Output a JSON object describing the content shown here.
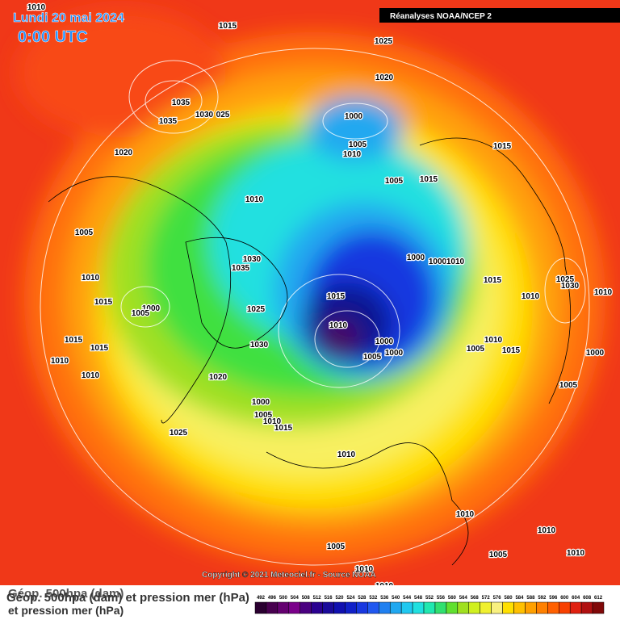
{
  "header": {
    "date": "Lundi 20 mai 2024",
    "time": "0:00 UTC",
    "source": "Réanalyses NOAA/NCEP 2"
  },
  "pressure_labels": [
    "1010",
    "1015",
    "1025",
    "1020",
    "1035",
    "1035",
    "1030",
    "025",
    "1000",
    "1005",
    "1010",
    "1020",
    "1015",
    "1005",
    "1015",
    "1010",
    "1005",
    "1030",
    "1035",
    "1000",
    "1000",
    "1010",
    "1010",
    "1015",
    "1025",
    "1030",
    "1010",
    "1015",
    "1010",
    "1015",
    "1000",
    "1005",
    "1025",
    "1010",
    "1000",
    "1000",
    "1005",
    "1030",
    "1015",
    "1015",
    "1010",
    "1005",
    "1015",
    "1000",
    "1010",
    "1010",
    "1020",
    "1005",
    "1000",
    "1005",
    "1010",
    "1015",
    "1025",
    "1010",
    "1010",
    "1010",
    "1005",
    "1005",
    "1010",
    "1010",
    "1010"
  ],
  "copyright": "Copyright © 2021 Meteociel.fr - Source NOAA",
  "legend": {
    "line1": "Géop. 500hpa (dam)",
    "line2": "Géop. 500hpa (dam) et pression mer (hPa)",
    "line3": "et pression mer (hPa)",
    "scale_values": [
      492,
      496,
      500,
      504,
      508,
      512,
      516,
      520,
      524,
      528,
      532,
      536,
      540,
      544,
      548,
      552,
      556,
      560,
      564,
      568,
      572,
      576,
      580,
      584,
      588,
      592,
      596,
      600,
      604,
      608,
      612
    ],
    "scale_colors": [
      "#2a0030",
      "#48004f",
      "#640070",
      "#7a008a",
      "#4a0080",
      "#2a0090",
      "#1a0a9a",
      "#1010b0",
      "#1020c8",
      "#1838e0",
      "#2058f0",
      "#2080f0",
      "#20a8f0",
      "#20c8f0",
      "#20e0e0",
      "#20e8b0",
      "#30e070",
      "#60e030",
      "#a0e020",
      "#d0f020",
      "#f0f030",
      "#f8f080",
      "#ffe000",
      "#ffc000",
      "#ffa000",
      "#ff8000",
      "#ff6000",
      "#f84000",
      "#e02010",
      "#b01010",
      "#800808"
    ]
  }
}
